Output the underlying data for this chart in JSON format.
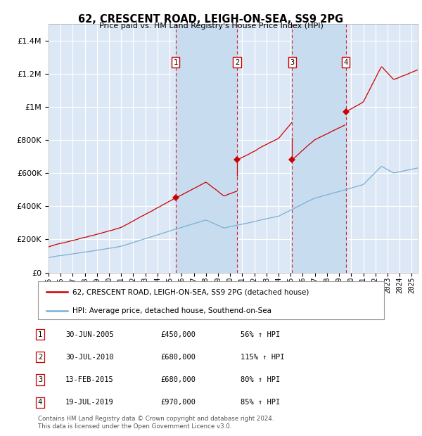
{
  "title": "62, CRESCENT ROAD, LEIGH-ON-SEA, SS9 2PG",
  "subtitle": "Price paid vs. HM Land Registry's House Price Index (HPI)",
  "xlim_start": 1995.0,
  "xlim_end": 2025.5,
  "ylim_min": 0,
  "ylim_max": 1500000,
  "background_color": "#ffffff",
  "plot_bg_color": "#dce8f5",
  "grid_color": "#ffffff",
  "legend_label_red": "62, CRESCENT ROAD, LEIGH-ON-SEA, SS9 2PG (detached house)",
  "legend_label_blue": "HPI: Average price, detached house, Southend-on-Sea",
  "footer": "Contains HM Land Registry data © Crown copyright and database right 2024.\nThis data is licensed under the Open Government Licence v3.0.",
  "sale_dates": [
    2005.497,
    2010.58,
    2015.12,
    2019.548
  ],
  "sale_prices": [
    450000,
    680000,
    680000,
    970000
  ],
  "sale_labels": [
    "1",
    "2",
    "3",
    "4"
  ],
  "table_rows": [
    [
      "1",
      "30-JUN-2005",
      "£450,000",
      "56% ↑ HPI"
    ],
    [
      "2",
      "30-JUL-2010",
      "£680,000",
      "115% ↑ HPI"
    ],
    [
      "3",
      "13-FEB-2015",
      "£680,000",
      "80% ↑ HPI"
    ],
    [
      "4",
      "19-JUL-2019",
      "£970,000",
      "85% ↑ HPI"
    ]
  ],
  "red_color": "#cc0000",
  "blue_color": "#7bafd4",
  "dashed_color": "#cc0000",
  "shade_color": "#c8dcf0",
  "yticks": [
    0,
    200000,
    400000,
    600000,
    800000,
    1000000,
    1200000,
    1400000
  ]
}
